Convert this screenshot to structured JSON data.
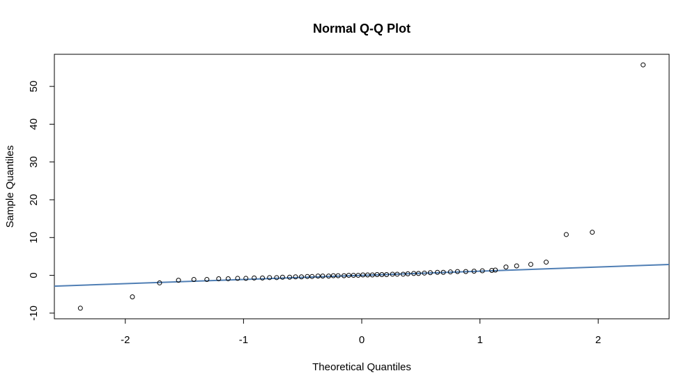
{
  "chart_data": {
    "type": "scatter",
    "title": "Normal Q-Q Plot",
    "xlabel": "Theoretical Quantiles",
    "ylabel": "Sample Quantiles",
    "xlim": [
      -2.6,
      2.6
    ],
    "ylim": [
      -11.5,
      58.5
    ],
    "x_ticks": [
      -2,
      -1,
      0,
      1,
      2
    ],
    "x_tick_labels": [
      "-2",
      "-1",
      "0",
      "1",
      "2"
    ],
    "y_ticks": [
      -10,
      0,
      10,
      20,
      30,
      40,
      50
    ],
    "y_tick_labels": [
      "-10",
      "0",
      "10",
      "20",
      "30",
      "40",
      "50"
    ],
    "grid": false,
    "points_x": [
      -2.38,
      -1.94,
      -1.71,
      -1.55,
      -1.42,
      -1.31,
      -1.21,
      -1.13,
      -1.05,
      -0.98,
      -0.91,
      -0.84,
      -0.78,
      -0.72,
      -0.67,
      -0.61,
      -0.56,
      -0.51,
      -0.46,
      -0.42,
      -0.37,
      -0.33,
      -0.28,
      -0.24,
      -0.2,
      -0.15,
      -0.11,
      -0.07,
      -0.03,
      0.01,
      0.05,
      0.09,
      0.13,
      0.17,
      0.21,
      0.26,
      0.3,
      0.35,
      0.39,
      0.44,
      0.48,
      0.53,
      0.58,
      0.64,
      0.69,
      0.75,
      0.81,
      0.88,
      0.95,
      1.02,
      1.1,
      1.13,
      1.22,
      1.31,
      1.43,
      1.56,
      1.73,
      1.95,
      2.38
    ],
    "points_y": [
      -8.7,
      -5.7,
      -2.0,
      -1.3,
      -1.1,
      -1.1,
      -0.9,
      -0.9,
      -0.8,
      -0.8,
      -0.7,
      -0.7,
      -0.6,
      -0.6,
      -0.5,
      -0.5,
      -0.4,
      -0.4,
      -0.3,
      -0.3,
      -0.2,
      -0.2,
      -0.2,
      -0.1,
      -0.1,
      -0.1,
      0.0,
      0.0,
      0.0,
      0.1,
      0.1,
      0.1,
      0.2,
      0.2,
      0.2,
      0.3,
      0.3,
      0.3,
      0.4,
      0.5,
      0.5,
      0.6,
      0.7,
      0.8,
      0.8,
      0.9,
      1.0,
      1.0,
      1.1,
      1.2,
      1.3,
      1.4,
      2.2,
      2.5,
      2.9,
      3.5,
      10.8,
      11.4,
      55.7
    ],
    "reference_line": {
      "slope": 1.1,
      "intercept": 0.0,
      "color": "#4F7EB4"
    },
    "point_color": "#000000"
  }
}
